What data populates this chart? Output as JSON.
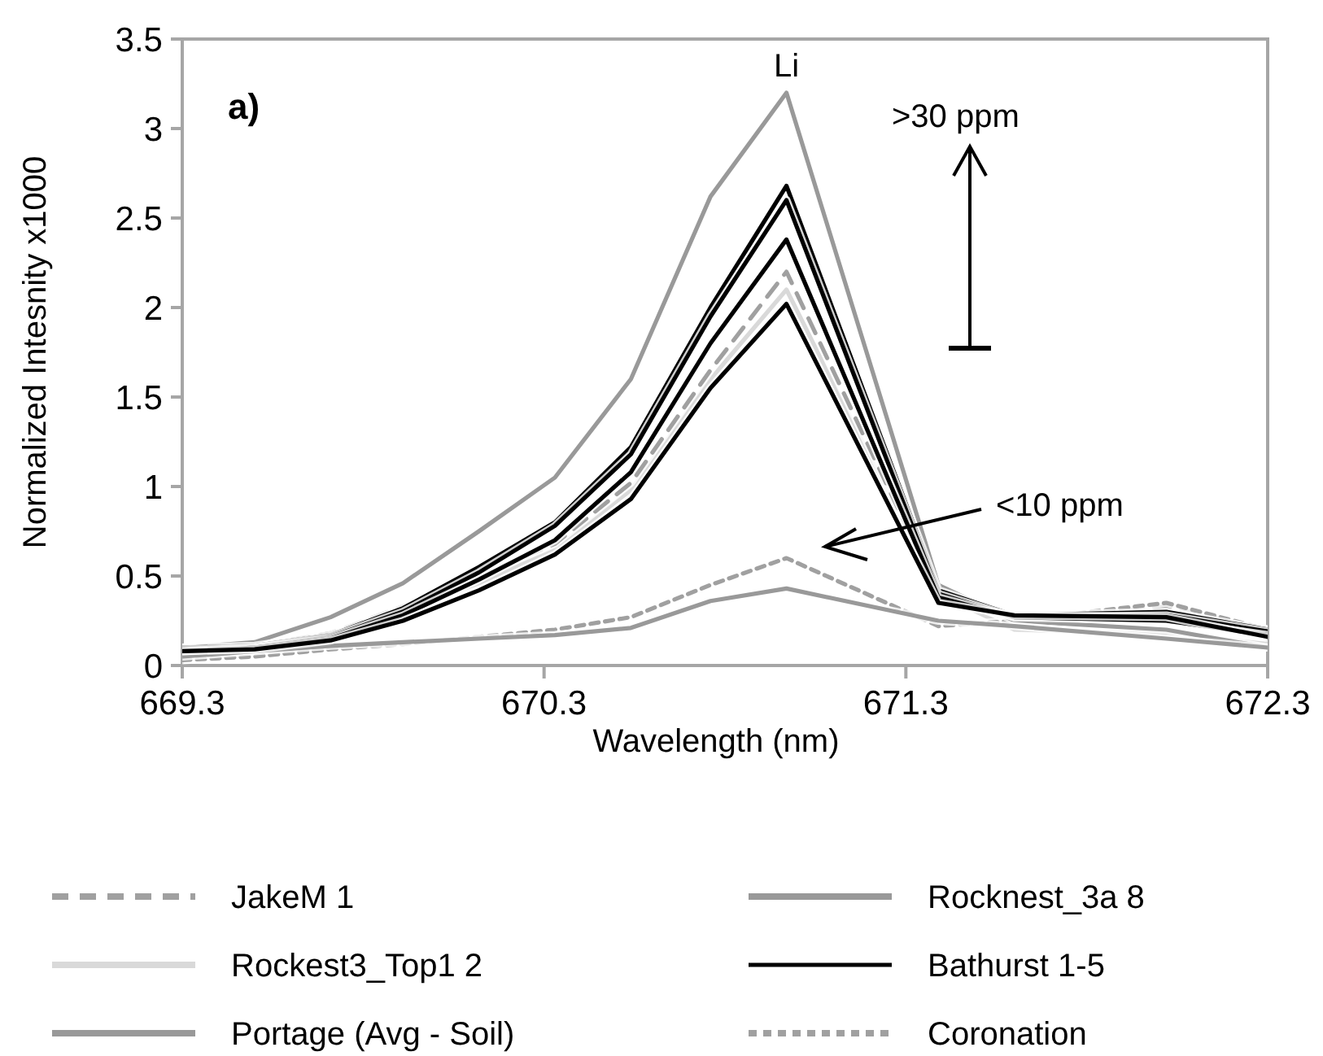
{
  "chart_data": {
    "type": "line",
    "xlabel": "Wavelength (nm)",
    "ylabel": "Normalized Intesnity x1000",
    "x": [
      669.3,
      669.5,
      669.71,
      669.91,
      670.12,
      670.33,
      670.54,
      670.76,
      670.97,
      671.39,
      671.6,
      672.02,
      672.3
    ],
    "xlim": [
      669.3,
      672.3
    ],
    "xticks": [
      669.3,
      670.3,
      671.3,
      672.3
    ],
    "ylim": [
      0,
      3.5
    ],
    "yticks": [
      0,
      0.5,
      1,
      1.5,
      2,
      2.5,
      3,
      3.5
    ],
    "grid": false,
    "legend": "bottom",
    "marker": "none",
    "series": [
      {
        "name": "JakeM 1",
        "color": "#a0a0a0",
        "line_style": "dashed",
        "values": [
          0.09,
          0.11,
          0.18,
          0.33,
          0.5,
          0.68,
          1.02,
          1.65,
          2.2,
          0.4,
          0.25,
          0.33,
          0.2
        ]
      },
      {
        "name": "Rocknest_3a 8",
        "color": "#999999",
        "line_style": "solid",
        "values": [
          0.1,
          0.13,
          0.27,
          0.46,
          0.75,
          1.05,
          1.6,
          2.62,
          3.2,
          0.45,
          0.25,
          0.2,
          0.1
        ]
      },
      {
        "name": "Rockest3_Top1 2",
        "color": "#d9d9d9",
        "line_style": "solid",
        "values": [
          0.09,
          0.1,
          0.16,
          0.3,
          0.46,
          0.65,
          0.98,
          1.6,
          2.1,
          0.4,
          0.2,
          0.18,
          0.12
        ]
      },
      {
        "name": "Bathurst 1-5",
        "color": "#000000",
        "line_style": "solid",
        "values": [
          0.1,
          0.11,
          0.17,
          0.32,
          0.55,
          0.8,
          1.22,
          2.0,
          2.68,
          0.42,
          0.28,
          0.3,
          0.2
        ]
      },
      {
        "name": "Portage (Avg - Soil)",
        "color": "#999999",
        "line_style": "solid",
        "values": [
          0.05,
          0.08,
          0.11,
          0.13,
          0.15,
          0.17,
          0.21,
          0.36,
          0.43,
          0.25,
          0.22,
          0.15,
          0.1
        ]
      },
      {
        "name": "Coronation",
        "color": "#a0a0a0",
        "line_style": "dotted",
        "values": [
          0.03,
          0.05,
          0.09,
          0.12,
          0.16,
          0.2,
          0.27,
          0.45,
          0.6,
          0.22,
          0.25,
          0.35,
          0.2
        ]
      },
      {
        "color": "#000000",
        "line_style": "solid",
        "values": [
          0.09,
          0.1,
          0.16,
          0.3,
          0.52,
          0.78,
          1.18,
          1.95,
          2.6,
          0.4,
          0.27,
          0.28,
          0.19
        ]
      },
      {
        "color": "#000000",
        "line_style": "solid",
        "values": [
          0.08,
          0.1,
          0.15,
          0.28,
          0.48,
          0.7,
          1.08,
          1.8,
          2.38,
          0.38,
          0.27,
          0.25,
          0.17
        ]
      },
      {
        "color": "#000000",
        "line_style": "solid",
        "values": [
          0.08,
          0.09,
          0.14,
          0.25,
          0.42,
          0.62,
          0.93,
          1.55,
          2.02,
          0.35,
          0.28,
          0.27,
          0.16
        ]
      }
    ],
    "annotations": [
      "a)",
      {
        "text": "Li",
        "x": 670.97,
        "y": 3.2
      },
      ">30 ppm",
      "<10 ppm"
    ]
  }
}
